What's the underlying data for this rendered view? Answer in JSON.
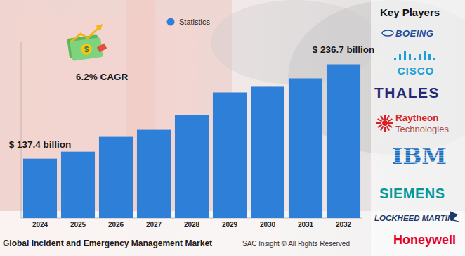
{
  "chart_data": {
    "type": "bar",
    "title": "Global Incident and Emergency Management Market",
    "categories": [
      "2024",
      "2025",
      "2026",
      "2027",
      "2028",
      "2029",
      "2030",
      "2031",
      "2032"
    ],
    "series": [
      {
        "name": "Statistics",
        "color": "#2d7fd8",
        "values": [
          137.4,
          144.8,
          160.4,
          167.8,
          183.4,
          207.1,
          213.8,
          221.9,
          236.7
        ],
        "value_labels": [
          "$ 137.4 billion",
          null,
          null,
          null,
          null,
          null,
          null,
          null,
          "$ 236.7 billion"
        ]
      }
    ],
    "ylim": [
      75,
      260
    ],
    "yticks": [],
    "tick_labels": "x",
    "grid": false,
    "legend": "top",
    "data_labels": true,
    "annotations": [
      "6.2% CAGR",
      "SAC Insight © All Rights Reserved"
    ]
  },
  "key_players": {
    "title": "Key Players",
    "names": [
      "BOEING",
      "CISCO",
      "THALES",
      "Raytheon Technologies",
      "IBM",
      "SIEMENS",
      "LOCKHEED MARTIN",
      "Honeywell"
    ]
  }
}
